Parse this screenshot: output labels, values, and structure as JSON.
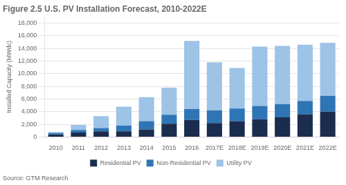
{
  "chart_data": {
    "type": "bar",
    "stacked": true,
    "title": "Figure 2.5 U.S. PV Installation Forecast, 2010-2022E",
    "source": "Source: GTM Research",
    "ylabel": "Installed Capacity (MWdc)",
    "categories": [
      "2010",
      "2011",
      "2012",
      "2013",
      "2014",
      "2015",
      "2016",
      "2017E",
      "2018E",
      "2019E",
      "2020E",
      "2021E",
      "2022E"
    ],
    "series": [
      {
        "name": "Residential PV",
        "color": "#1b2d4f",
        "values": [
          400,
          700,
          900,
          900,
          1200,
          2100,
          2700,
          2200,
          2500,
          2800,
          3100,
          3600,
          4000
        ]
      },
      {
        "name": "Non-Residential PV",
        "color": "#2e75b6",
        "values": [
          200,
          400,
          500,
          900,
          1300,
          1400,
          1700,
          2000,
          2000,
          2100,
          2100,
          2100,
          2500
        ]
      },
      {
        "name": "Utility PV",
        "color": "#9dc3e6",
        "values": [
          200,
          800,
          1900,
          3000,
          3800,
          4300,
          10800,
          7600,
          6400,
          9400,
          9200,
          8900,
          8400
        ]
      }
    ],
    "ylim": [
      0,
      19000
    ],
    "yticks": [
      0,
      {
        "value": 2000,
        "label": "2,000"
      },
      {
        "value": 4000,
        "label": "4,000"
      },
      {
        "value": 6000,
        "label": "6,000"
      },
      {
        "value": 8000,
        "label": "8,000"
      },
      {
        "value": 10000,
        "label": "10,000"
      },
      {
        "value": 12000,
        "label": "12,000"
      },
      {
        "value": 14000,
        "label": "14,000"
      },
      {
        "value": 16000,
        "label": "16,000"
      },
      {
        "value": 18000,
        "label": "18,000"
      }
    ],
    "grid": true,
    "legend": "bottom"
  }
}
